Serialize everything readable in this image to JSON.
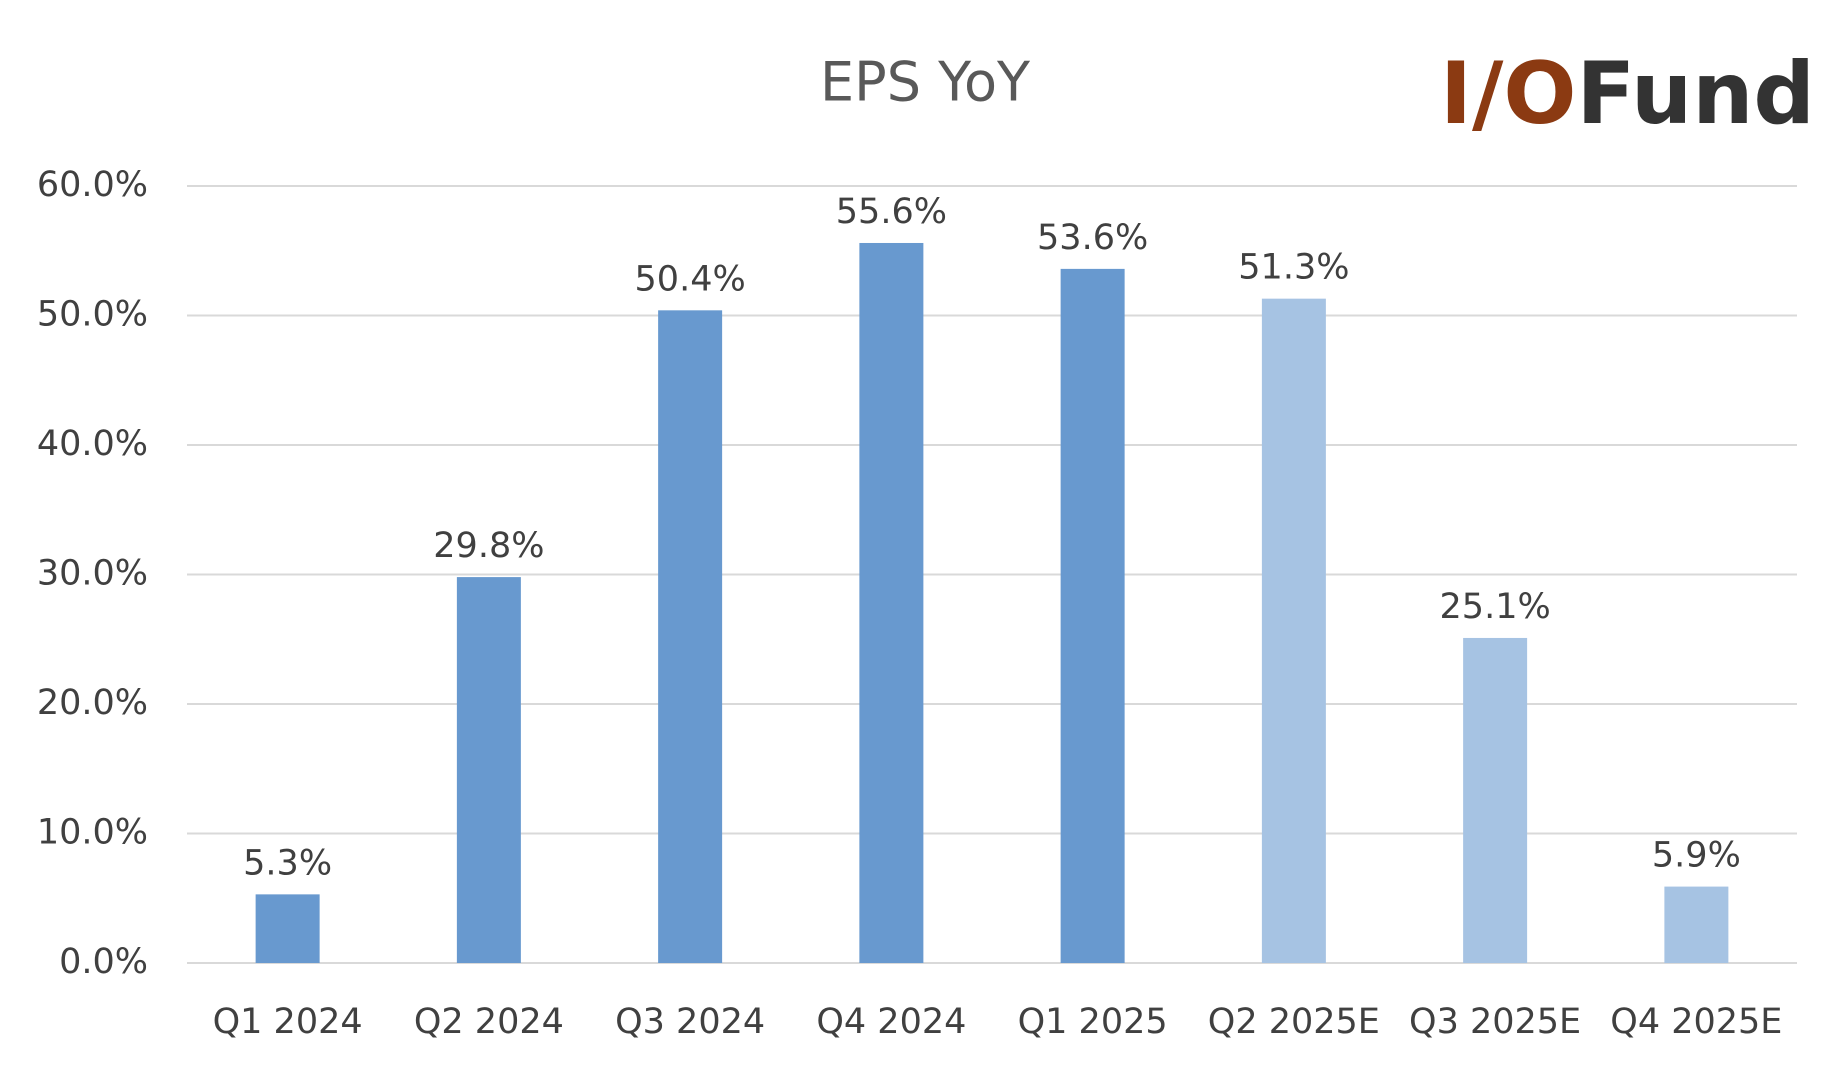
{
  "chart_data": {
    "type": "bar",
    "title": "EPS YoY",
    "logo": [
      "I/O",
      "Fund"
    ],
    "categories": [
      "Q1 2024",
      "Q2 2024",
      "Q3 2024",
      "Q4 2024",
      "Q1 2025",
      "Q2 2025E",
      "Q3 2025E",
      "Q4 2025E"
    ],
    "values": [
      5.3,
      29.8,
      50.4,
      55.6,
      53.6,
      51.3,
      25.1,
      5.9
    ],
    "value_labels": [
      "5.3%",
      "29.8%",
      "50.4%",
      "55.6%",
      "53.6%",
      "51.3%",
      "25.1%",
      "5.9%"
    ],
    "colors": [
      "#6899cf",
      "#6899cf",
      "#6899cf",
      "#6899cf",
      "#6899cf",
      "#a6c3e3",
      "#a6c3e3",
      "#a6c3e3"
    ],
    "ylim": [
      0,
      60
    ],
    "yticks": [
      {
        "value": 0,
        "label": "0.0%"
      },
      {
        "value": 10,
        "label": "10.0%"
      },
      {
        "value": 20,
        "label": "20.0%"
      },
      {
        "value": 30,
        "label": "30.0%"
      },
      {
        "value": 40,
        "label": "40.0%"
      },
      {
        "value": 50,
        "label": "50.0%"
      },
      {
        "value": 60,
        "label": "60.0%"
      }
    ],
    "grid": true
  }
}
